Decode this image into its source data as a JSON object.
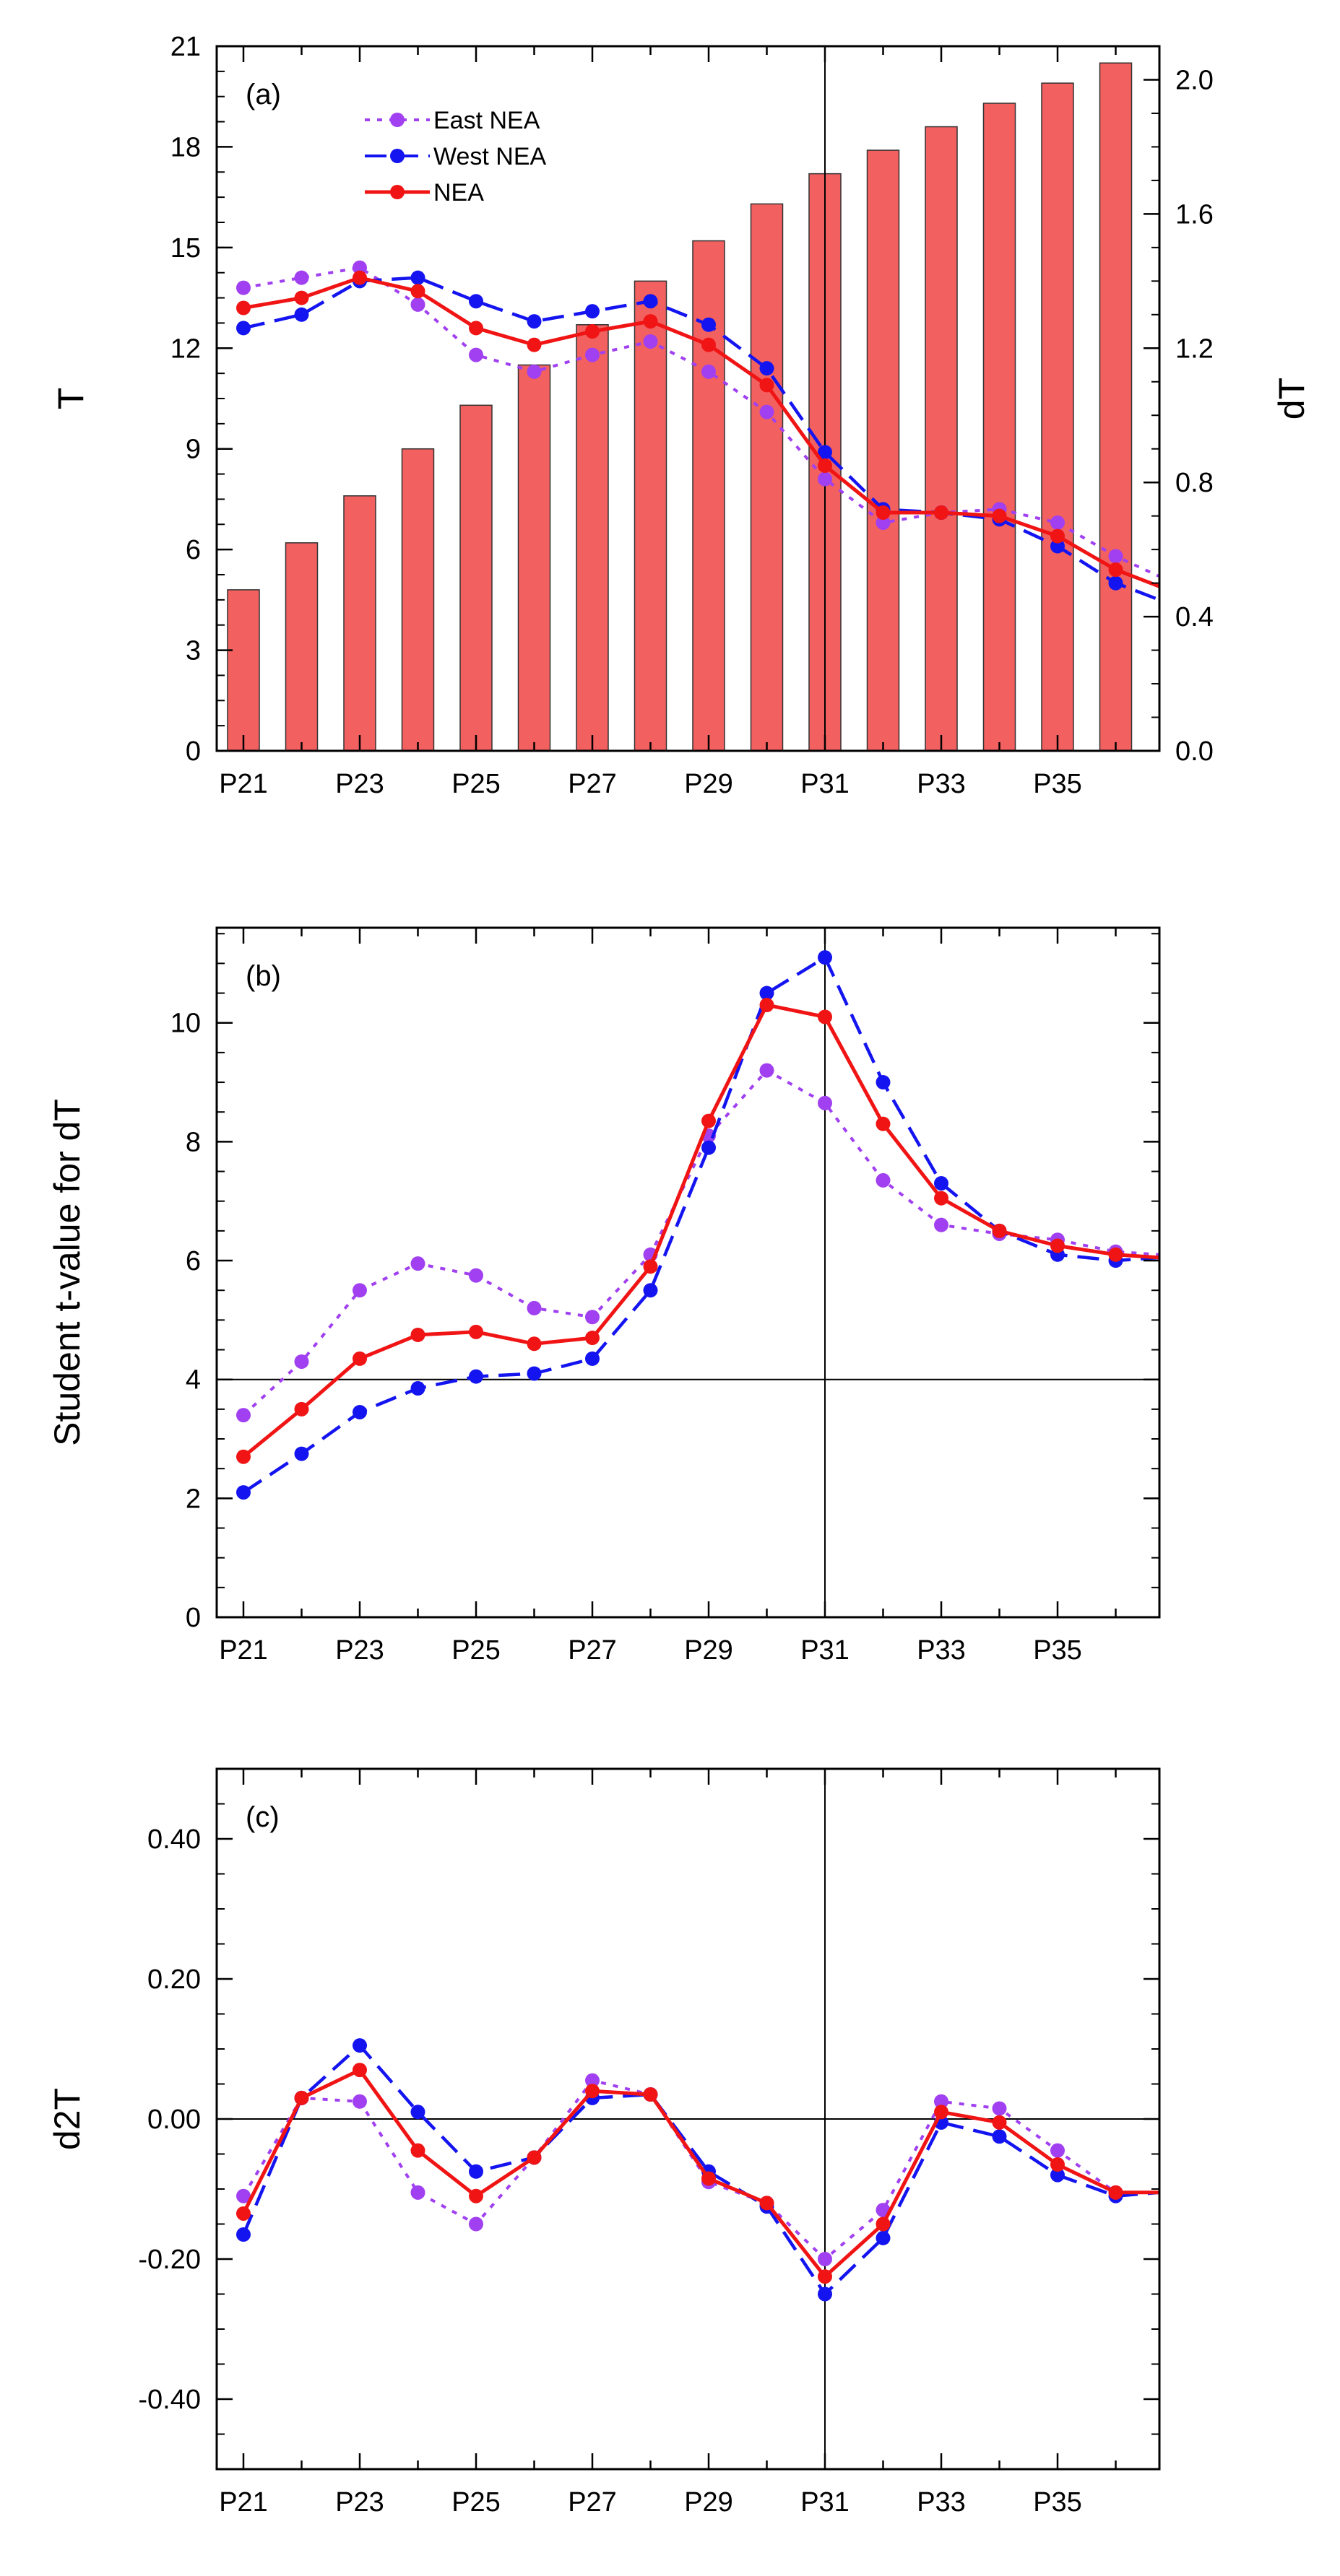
{
  "colors": {
    "east": "#A040F0",
    "west": "#1414F0",
    "nea": "#F01414",
    "bar_fill": "#F26060",
    "bar_stroke": "#333333",
    "axis": "#000000"
  },
  "chart_data": [
    {
      "type": "bar+line",
      "panel_label": "(a)",
      "categories": [
        "P21",
        "P22",
        "P23",
        "P24",
        "P25",
        "P26",
        "P27",
        "P28",
        "P29",
        "P30",
        "P31",
        "P32",
        "P33",
        "P34",
        "P35",
        "P36"
      ],
      "x_tick_labels": [
        "P21",
        "P23",
        "P25",
        "P27",
        "P29",
        "P31",
        "P33",
        "P35"
      ],
      "ylabel": "T",
      "ylabel_right": "dT",
      "ylim": [
        0,
        21
      ],
      "yticks": [
        "0",
        "3",
        "6",
        "9",
        "12",
        "15",
        "18",
        "21"
      ],
      "ylim_right": [
        0,
        2.1
      ],
      "yticks_right": [
        "0.0",
        "0.4",
        "0.8",
        "1.2",
        "1.6",
        "2.0"
      ],
      "bars": {
        "name": "T",
        "axis": "left",
        "values": [
          4.8,
          6.2,
          7.6,
          9.0,
          10.3,
          11.5,
          12.7,
          14.0,
          15.2,
          16.3,
          17.2,
          17.9,
          18.6,
          19.3,
          19.9,
          20.5
        ]
      },
      "series": [
        {
          "name": "East NEA",
          "axis": "right",
          "style": "dotted",
          "values": [
            1.38,
            1.41,
            1.44,
            1.33,
            1.18,
            1.13,
            1.18,
            1.22,
            1.13,
            1.01,
            0.81,
            0.68,
            0.71,
            0.72,
            0.68,
            0.58
          ]
        },
        {
          "name": "West NEA",
          "axis": "right",
          "style": "dashed",
          "values": [
            1.26,
            1.3,
            1.4,
            1.41,
            1.34,
            1.28,
            1.31,
            1.34,
            1.27,
            1.14,
            0.89,
            0.72,
            0.71,
            0.69,
            0.61,
            0.5
          ]
        },
        {
          "name": "NEA",
          "axis": "right",
          "style": "solid",
          "values": [
            1.32,
            1.35,
            1.41,
            1.37,
            1.26,
            1.21,
            1.25,
            1.28,
            1.21,
            1.09,
            0.85,
            0.71,
            0.71,
            0.7,
            0.64,
            0.54
          ]
        }
      ],
      "series_extension": {
        "east": 0.52,
        "west": 0.45,
        "nea": 0.49
      },
      "legend": [
        "East NEA",
        "West NEA",
        "NEA"
      ],
      "legend_position": "top-left",
      "vline_x": "P31"
    },
    {
      "type": "line",
      "panel_label": "(b)",
      "categories": [
        "P21",
        "P22",
        "P23",
        "P24",
        "P25",
        "P26",
        "P27",
        "P28",
        "P29",
        "P30",
        "P31",
        "P32",
        "P33",
        "P34",
        "P35",
        "P36"
      ],
      "x_tick_labels": [
        "P21",
        "P23",
        "P25",
        "P27",
        "P29",
        "P31",
        "P33",
        "P35"
      ],
      "ylabel": "Student t-value for dT",
      "ylim": [
        0,
        11.6
      ],
      "yticks": [
        "0",
        "2",
        "4",
        "6",
        "8",
        "10"
      ],
      "series": [
        {
          "name": "East NEA",
          "style": "dotted",
          "values": [
            3.4,
            4.3,
            5.5,
            5.95,
            5.75,
            5.2,
            5.05,
            6.1,
            8.1,
            9.2,
            8.65,
            7.35,
            6.6,
            6.45,
            6.35,
            6.15
          ]
        },
        {
          "name": "West NEA",
          "style": "dashed",
          "values": [
            2.1,
            2.75,
            3.45,
            3.85,
            4.05,
            4.1,
            4.35,
            5.5,
            7.9,
            10.5,
            11.1,
            9.0,
            7.3,
            6.5,
            6.1,
            6.0
          ]
        },
        {
          "name": "NEA",
          "style": "solid",
          "values": [
            2.7,
            3.5,
            4.35,
            4.75,
            4.8,
            4.6,
            4.7,
            5.9,
            8.35,
            10.3,
            10.1,
            8.3,
            7.05,
            6.5,
            6.25,
            6.1
          ]
        }
      ],
      "series_extension": {
        "east": 6.1,
        "west": 6.05,
        "nea": 6.05
      },
      "hline_y": 4,
      "vline_x": "P31"
    },
    {
      "type": "line",
      "panel_label": "(c)",
      "categories": [
        "P21",
        "P22",
        "P23",
        "P24",
        "P25",
        "P26",
        "P27",
        "P28",
        "P29",
        "P30",
        "P31",
        "P32",
        "P33",
        "P34",
        "P35",
        "P36"
      ],
      "x_tick_labels": [
        "P21",
        "P23",
        "P25",
        "P27",
        "P29",
        "P31",
        "P33",
        "P35"
      ],
      "ylabel": "d2T",
      "ylim": [
        -0.5,
        0.5
      ],
      "yticks": [
        "-0.40",
        "-0.20",
        "0.00",
        "0.20",
        "0.40"
      ],
      "series": [
        {
          "name": "East NEA",
          "style": "dotted",
          "values": [
            -0.11,
            0.03,
            0.025,
            -0.105,
            -0.15,
            -0.055,
            0.055,
            0.035,
            -0.09,
            -0.12,
            -0.2,
            -0.13,
            0.025,
            0.015,
            -0.045,
            -0.105
          ]
        },
        {
          "name": "West NEA",
          "style": "dashed",
          "values": [
            -0.165,
            0.03,
            0.105,
            0.01,
            -0.075,
            -0.055,
            0.03,
            0.035,
            -0.075,
            -0.125,
            -0.25,
            -0.17,
            -0.005,
            -0.025,
            -0.08,
            -0.11
          ]
        },
        {
          "name": "NEA",
          "style": "solid",
          "values": [
            -0.135,
            0.03,
            0.07,
            -0.045,
            -0.11,
            -0.055,
            0.04,
            0.035,
            -0.085,
            -0.12,
            -0.225,
            -0.15,
            0.01,
            -0.005,
            -0.065,
            -0.105
          ]
        }
      ],
      "series_extension": {
        "east": -0.105,
        "west": -0.105,
        "nea": -0.105
      },
      "hline_y": 0,
      "vline_x": "P31"
    }
  ]
}
